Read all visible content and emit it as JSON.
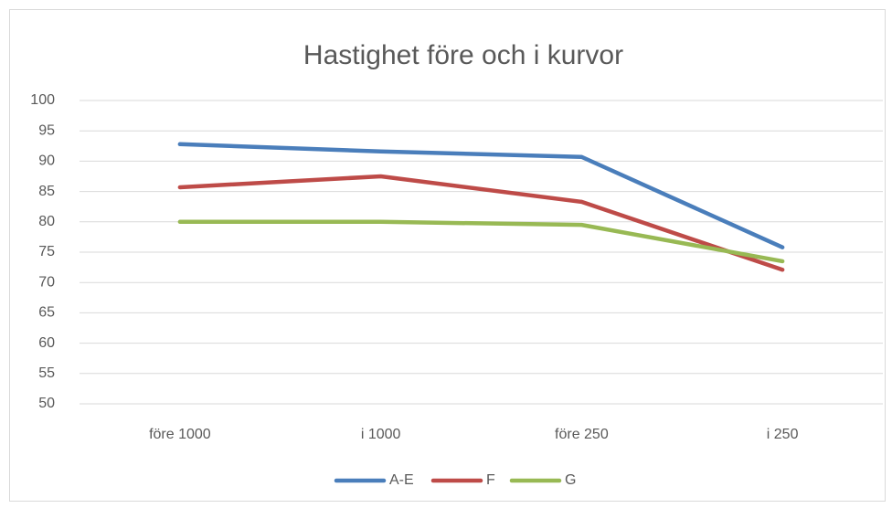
{
  "chart_data": {
    "type": "line",
    "title": "Hastighet före och i kurvor",
    "categories": [
      "före 1000",
      "i 1000",
      "före 250",
      "i 250"
    ],
    "series": [
      {
        "name": "A-E",
        "color": "#4a7ebb",
        "values": [
          92.8,
          91.6,
          90.7,
          75.8
        ]
      },
      {
        "name": "F",
        "color": "#be4b48",
        "values": [
          85.7,
          87.5,
          83.3,
          72.1
        ]
      },
      {
        "name": "G",
        "color": "#98b954",
        "values": [
          80,
          80,
          79.5,
          73.5
        ]
      }
    ],
    "ylim": [
      50,
      100
    ],
    "yticks": [
      50,
      55,
      60,
      65,
      70,
      75,
      80,
      85,
      90,
      95,
      100
    ],
    "grid": true,
    "legend": "bottom"
  }
}
